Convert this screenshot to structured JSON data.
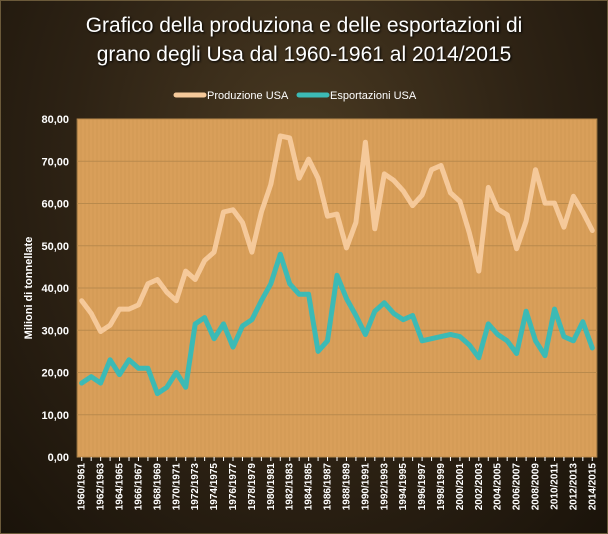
{
  "chart_data": {
    "type": "line",
    "title": "Grafico della produziona e delle esportazioni di grano degli Usa dal 1960-1961 al 2014/2015",
    "title_lines": [
      "Grafico della produziona e delle esportazioni di",
      "grano degli Usa dal 1960-1961  al 2014/2015"
    ],
    "xlabel": "",
    "ylabel": "Milioni di tonnellate",
    "ylim": [
      0,
      80
    ],
    "yticks": [
      "0,00",
      "10,00",
      "20,00",
      "30,00",
      "40,00",
      "50,00",
      "60,00",
      "70,00",
      "80,00"
    ],
    "grid": true,
    "legend_position": "top",
    "x": [
      "1960/1961",
      "1961/1962",
      "1962/1963",
      "1963/1964",
      "1964/1965",
      "1965/1966",
      "1966/1967",
      "1967/1968",
      "1968/1969",
      "1969/1970",
      "1970/1971",
      "1971/1972",
      "1972/1973",
      "1973/1974",
      "1974/1975",
      "1975/1976",
      "1976/1977",
      "1977/1978",
      "1978/1979",
      "1979/1980",
      "1980/1981",
      "1981/1982",
      "1982/1983",
      "1983/1984",
      "1984/1985",
      "1985/1986",
      "1986/1987",
      "1987/1988",
      "1988/1989",
      "1989/1990",
      "1990/1991",
      "1991/1992",
      "1992/1993",
      "1993/1994",
      "1994/1995",
      "1995/1996",
      "1996/1997",
      "1997/1998",
      "1998/1999",
      "1999/2000",
      "2000/2001",
      "2001/2002",
      "2002/2003",
      "2003/2004",
      "2004/2005",
      "2005/2006",
      "2006/2007",
      "2007/2008",
      "2008/2009",
      "2009/2010",
      "2010/2011",
      "2011/2012",
      "2012/2013",
      "2013/2014",
      "2014/2015"
    ],
    "x_tick_labels": [
      "1960/1961",
      "",
      "1962/1963",
      "",
      "1964/1965",
      "",
      "1966/1967",
      "",
      "1968/1969",
      "",
      "1970/1971",
      "",
      "1972/1973",
      "",
      "1974/1975",
      "",
      "1976/1977",
      "",
      "1978/1979",
      "",
      "1980/1981",
      "",
      "1982/1983",
      "",
      "1984/1985",
      "",
      "1986/1987",
      "",
      "1988/1989",
      "",
      "1990/1991",
      "",
      "1992/1993",
      "",
      "1994/1995",
      "",
      "1996/1997",
      "",
      "1998/1999",
      "",
      "2000/2001",
      "",
      "2002/2003",
      "",
      "2004/2005",
      "",
      "2006/2007",
      "",
      "2008/2009",
      "",
      "2010/2011",
      "",
      "2012/2013",
      "",
      "2014/2015"
    ],
    "series": [
      {
        "name": "Produzione USA",
        "color": "#f5c99a",
        "values": [
          37.0,
          34.0,
          29.7,
          31.2,
          35.0,
          35.0,
          36.0,
          41.0,
          42.0,
          39.0,
          37.0,
          44.0,
          42.0,
          46.5,
          48.5,
          58.0,
          58.5,
          55.5,
          48.5,
          58.0,
          64.5,
          76.0,
          75.5,
          66.0,
          70.5,
          66.0,
          57.0,
          57.5,
          49.5,
          55.5,
          74.5,
          54.0,
          67.0,
          65.5,
          63.0,
          59.5,
          62.0,
          68.0,
          69.0,
          62.5,
          60.5,
          53.0,
          44.0,
          63.8,
          58.7,
          57.3,
          49.3,
          55.8,
          68.0,
          60.1,
          60.1,
          54.4,
          61.7,
          58.0,
          53.6
        ]
      },
      {
        "name": "Esportazioni USA",
        "color": "#3cbab5",
        "values": [
          17.5,
          19.0,
          17.5,
          23.0,
          19.5,
          23.0,
          21.0,
          21.0,
          15.0,
          16.5,
          20.0,
          16.5,
          31.5,
          33.0,
          28.0,
          31.5,
          26.0,
          31.0,
          32.5,
          37.0,
          41.0,
          48.0,
          41.0,
          38.5,
          38.5,
          25.0,
          27.5,
          43.0,
          37.5,
          33.5,
          29.0,
          34.5,
          36.5,
          34.0,
          32.5,
          33.5,
          27.5,
          28.0,
          28.5,
          29.0,
          28.5,
          26.5,
          23.5,
          31.5,
          29.0,
          27.5,
          24.5,
          34.5,
          27.5,
          24.0,
          35.0,
          28.5,
          27.5,
          32.0,
          25.8
        ]
      }
    ]
  },
  "colors": {
    "plot_bg": "#d99f5a",
    "grid": "#b98a4c",
    "plot_border": "#8a6a3a"
  }
}
